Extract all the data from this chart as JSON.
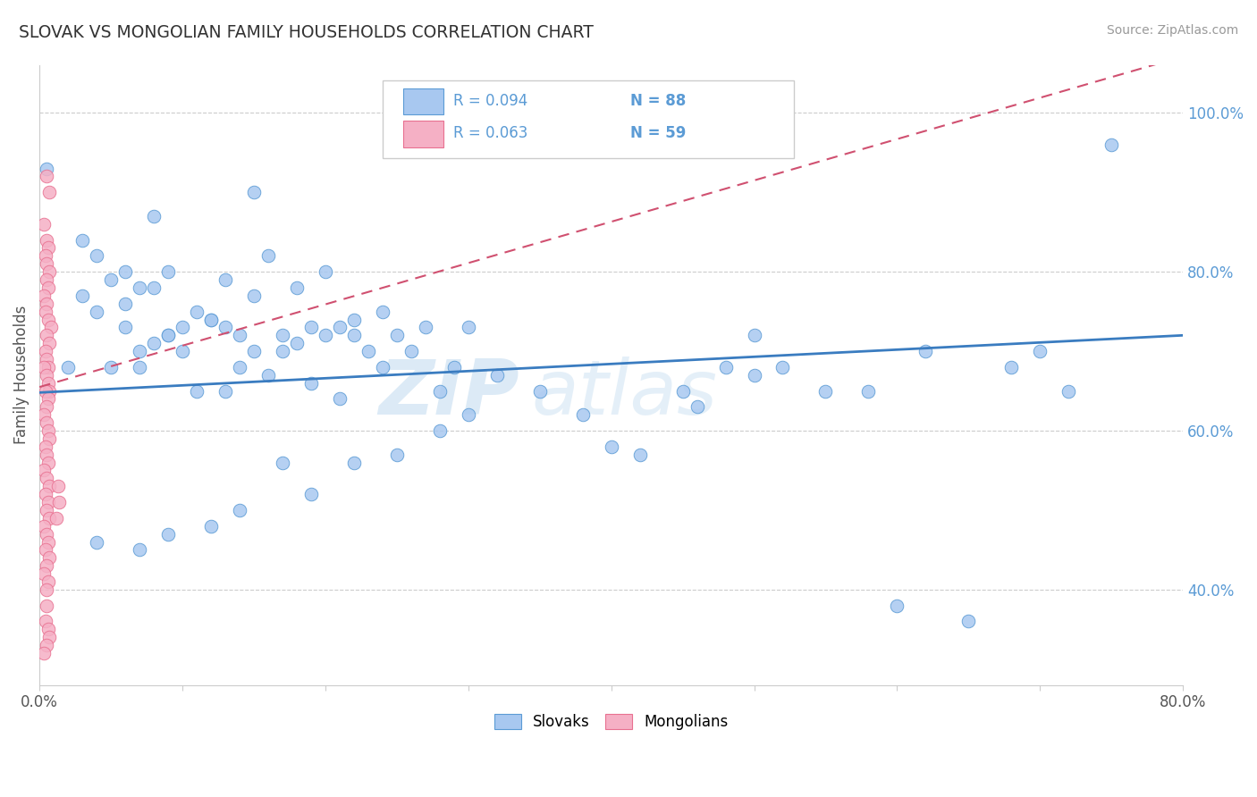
{
  "title": "SLOVAK VS MONGOLIAN FAMILY HOUSEHOLDS CORRELATION CHART",
  "source": "Source: ZipAtlas.com",
  "ylabel": "Family Households",
  "right_yticks": [
    "40.0%",
    "60.0%",
    "80.0%",
    "100.0%"
  ],
  "right_ytick_vals": [
    0.4,
    0.6,
    0.8,
    1.0
  ],
  "xlim": [
    0.0,
    0.8
  ],
  "ylim": [
    0.28,
    1.06
  ],
  "legend_r_slovak": "R = 0.094",
  "legend_n_slovak": "N = 88",
  "legend_r_mongolian": "R = 0.063",
  "legend_n_mongolian": "N = 59",
  "watermark_bold": "ZIP",
  "watermark_light": "atlas",
  "slovak_color": "#a8c8f0",
  "mongolian_color": "#f5b0c5",
  "slovak_edge_color": "#5b9bd5",
  "mongolian_edge_color": "#e87090",
  "slovak_line_color": "#3a7cc0",
  "mongolian_line_color": "#d05070",
  "slovak_line_intercept": 0.648,
  "slovak_line_slope": 0.09,
  "mongolian_line_intercept": 0.655,
  "mongolian_line_slope": 0.52,
  "slovak_x": [
    0.005,
    0.15,
    0.08,
    0.03,
    0.04,
    0.06,
    0.09,
    0.05,
    0.07,
    0.03,
    0.06,
    0.08,
    0.04,
    0.06,
    0.09,
    0.11,
    0.08,
    0.1,
    0.07,
    0.13,
    0.05,
    0.09,
    0.12,
    0.1,
    0.07,
    0.15,
    0.13,
    0.18,
    0.16,
    0.2,
    0.14,
    0.12,
    0.17,
    0.19,
    0.22,
    0.15,
    0.18,
    0.21,
    0.17,
    0.14,
    0.11,
    0.24,
    0.2,
    0.16,
    0.22,
    0.27,
    0.23,
    0.19,
    0.13,
    0.25,
    0.29,
    0.26,
    0.3,
    0.24,
    0.21,
    0.28,
    0.32,
    0.35,
    0.4,
    0.38,
    0.45,
    0.42,
    0.5,
    0.46,
    0.55,
    0.6,
    0.65,
    0.7,
    0.5,
    0.52,
    0.48,
    0.58,
    0.62,
    0.68,
    0.72,
    0.75,
    0.3,
    0.28,
    0.25,
    0.22,
    0.19,
    0.17,
    0.14,
    0.12,
    0.09,
    0.07,
    0.04,
    0.02
  ],
  "slovak_y": [
    0.93,
    0.9,
    0.87,
    0.84,
    0.82,
    0.8,
    0.8,
    0.79,
    0.78,
    0.77,
    0.76,
    0.78,
    0.75,
    0.73,
    0.72,
    0.75,
    0.71,
    0.73,
    0.7,
    0.79,
    0.68,
    0.72,
    0.74,
    0.7,
    0.68,
    0.77,
    0.73,
    0.78,
    0.82,
    0.8,
    0.72,
    0.74,
    0.72,
    0.73,
    0.74,
    0.7,
    0.71,
    0.73,
    0.7,
    0.68,
    0.65,
    0.75,
    0.72,
    0.67,
    0.72,
    0.73,
    0.7,
    0.66,
    0.65,
    0.72,
    0.68,
    0.7,
    0.73,
    0.68,
    0.64,
    0.65,
    0.67,
    0.65,
    0.58,
    0.62,
    0.65,
    0.57,
    0.67,
    0.63,
    0.65,
    0.38,
    0.36,
    0.7,
    0.72,
    0.68,
    0.68,
    0.65,
    0.7,
    0.68,
    0.65,
    0.96,
    0.62,
    0.6,
    0.57,
    0.56,
    0.52,
    0.56,
    0.5,
    0.48,
    0.47,
    0.45,
    0.46,
    0.68
  ],
  "mongolian_x": [
    0.005,
    0.007,
    0.003,
    0.005,
    0.006,
    0.004,
    0.005,
    0.007,
    0.005,
    0.006,
    0.003,
    0.005,
    0.004,
    0.006,
    0.008,
    0.005,
    0.007,
    0.004,
    0.005,
    0.006,
    0.003,
    0.005,
    0.006,
    0.007,
    0.004,
    0.006,
    0.005,
    0.003,
    0.005,
    0.006,
    0.007,
    0.004,
    0.005,
    0.006,
    0.003,
    0.005,
    0.007,
    0.004,
    0.006,
    0.005,
    0.007,
    0.003,
    0.005,
    0.006,
    0.004,
    0.007,
    0.005,
    0.003,
    0.006,
    0.005,
    0.013,
    0.014,
    0.012,
    0.005,
    0.004,
    0.006,
    0.007,
    0.005,
    0.003
  ],
  "mongolian_y": [
    0.92,
    0.9,
    0.86,
    0.84,
    0.83,
    0.82,
    0.81,
    0.8,
    0.79,
    0.78,
    0.77,
    0.76,
    0.75,
    0.74,
    0.73,
    0.72,
    0.71,
    0.7,
    0.69,
    0.68,
    0.68,
    0.67,
    0.66,
    0.65,
    0.65,
    0.64,
    0.63,
    0.62,
    0.61,
    0.6,
    0.59,
    0.58,
    0.57,
    0.56,
    0.55,
    0.54,
    0.53,
    0.52,
    0.51,
    0.5,
    0.49,
    0.48,
    0.47,
    0.46,
    0.45,
    0.44,
    0.43,
    0.42,
    0.41,
    0.4,
    0.53,
    0.51,
    0.49,
    0.38,
    0.36,
    0.35,
    0.34,
    0.33,
    0.32
  ]
}
